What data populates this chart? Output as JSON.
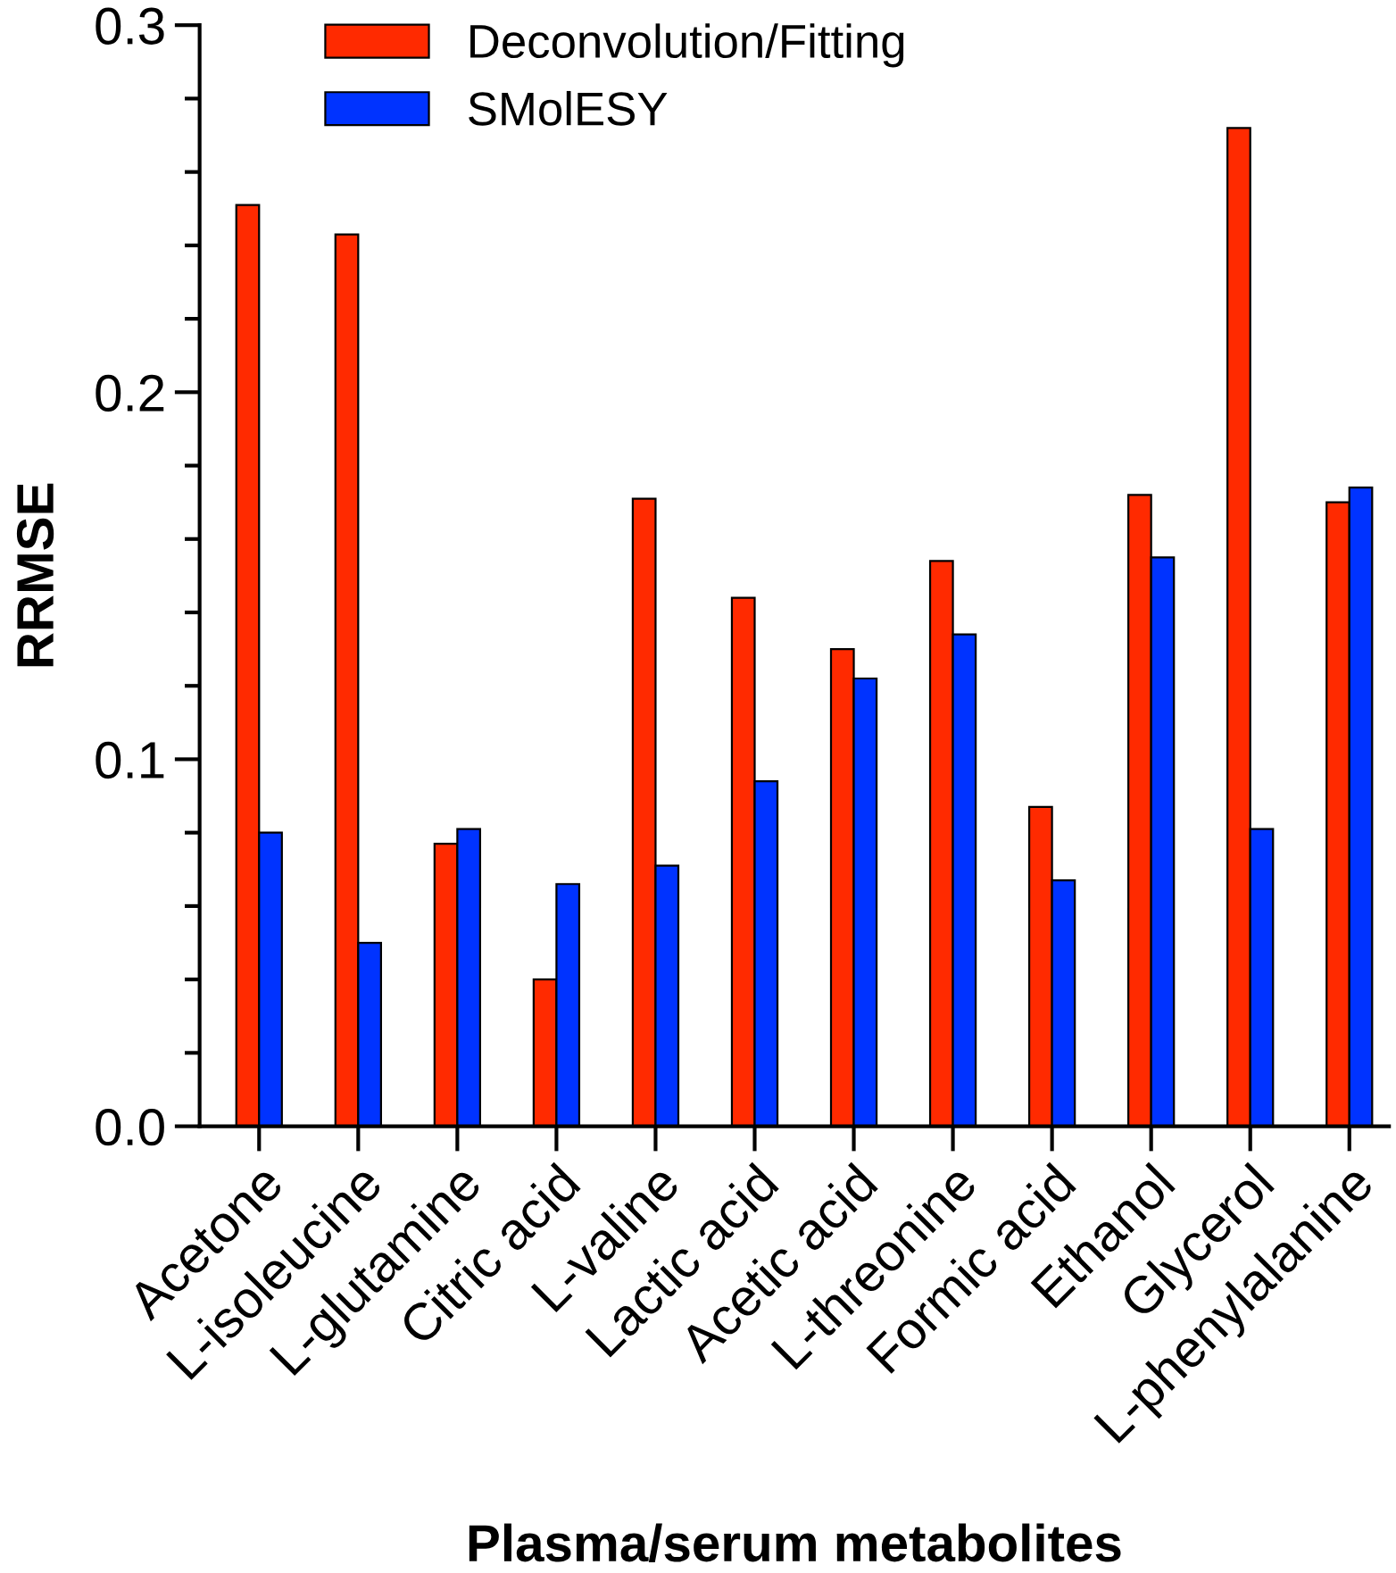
{
  "chart_data": {
    "type": "bar",
    "xlabel": "Plasma/serum metabolites",
    "ylabel": "RRMSE",
    "categories": [
      "Acetone",
      "L-isoleucine",
      "L-glutamine",
      "Citric acid",
      "L-valine",
      "Lactic acid",
      "Acetic acid",
      "L-threonine",
      "Formic acid",
      "Ethanol",
      "Glycerol",
      "L-phenylalanine"
    ],
    "series": [
      {
        "name": "Deconvolution/Fitting",
        "color": "#ff2a00",
        "values": [
          0.251,
          0.243,
          0.077,
          0.04,
          0.171,
          0.144,
          0.13,
          0.154,
          0.087,
          0.172,
          0.272,
          0.17
        ]
      },
      {
        "name": "SMolESY",
        "color": "#0033ff",
        "values": [
          0.08,
          0.05,
          0.081,
          0.066,
          0.071,
          0.094,
          0.122,
          0.134,
          0.067,
          0.155,
          0.081,
          0.174
        ]
      }
    ],
    "ylim": [
      0,
      0.3
    ],
    "yticks": [
      {
        "value": 0,
        "label": "0.0"
      },
      0.1,
      0.2,
      0.3
    ],
    "grid": false,
    "legend": "top left"
  }
}
